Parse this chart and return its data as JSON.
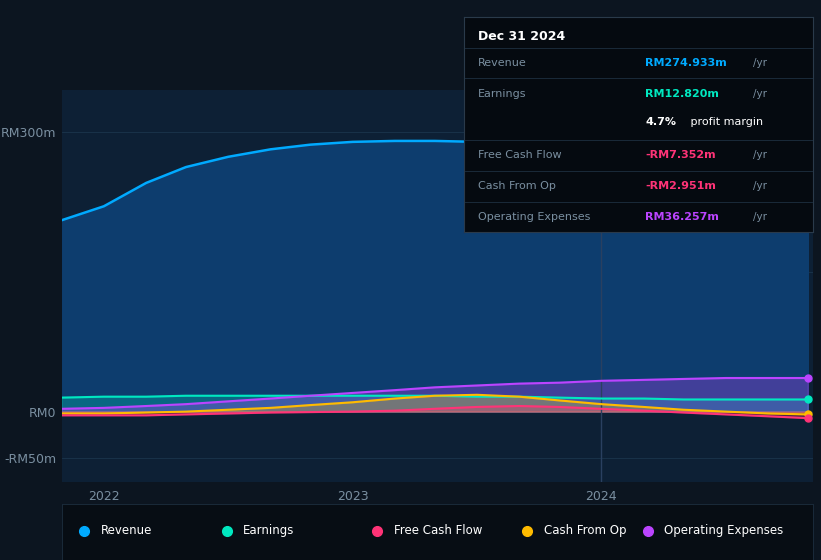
{
  "bg_color": "#0c1520",
  "plot_bg_color": "#0d2035",
  "grid_color": "#1e3a52",
  "text_color": "#7a8fa0",
  "ylabel_300": "RM300m",
  "ylabel_0": "RM0",
  "ylabel_neg50": "-RM50m",
  "revenue_color": "#00aaff",
  "earnings_color": "#00e8c0",
  "fcf_color": "#ff3377",
  "cashfromop_color": "#ffbb00",
  "opex_color": "#bb44ff",
  "revenue_fill_color": "#0d3d6e",
  "info_box_bg": "#050a10",
  "info_box_border": "#2a3a4a",
  "info_box": {
    "title": "Dec 31 2024",
    "revenue_label": "Revenue",
    "revenue_value": "RM274.933m",
    "revenue_color": "#00aaff",
    "earnings_label": "Earnings",
    "earnings_value": "RM12.820m",
    "earnings_color": "#00e8c0",
    "margin_pct": "4.7%",
    "margin_rest": " profit margin",
    "fcf_label": "Free Cash Flow",
    "fcf_value": "-RM7.352m",
    "fcf_color": "#ff3377",
    "cashop_label": "Cash From Op",
    "cashop_value": "-RM2.951m",
    "cashop_color": "#ff3377",
    "opex_label": "Operating Expenses",
    "opex_value": "RM36.257m",
    "opex_color": "#bb44ff"
  },
  "legend_items": [
    {
      "label": "Revenue",
      "color": "#00aaff"
    },
    {
      "label": "Earnings",
      "color": "#00e8c0"
    },
    {
      "label": "Free Cash Flow",
      "color": "#ff3377"
    },
    {
      "label": "Cash From Op",
      "color": "#ffbb00"
    },
    {
      "label": "Operating Expenses",
      "color": "#bb44ff"
    }
  ],
  "x_data": [
    2021.83,
    2022.0,
    2022.17,
    2022.33,
    2022.5,
    2022.67,
    2022.83,
    2023.0,
    2023.17,
    2023.33,
    2023.5,
    2023.67,
    2023.83,
    2024.0,
    2024.17,
    2024.33,
    2024.5,
    2024.67,
    2024.83
  ],
  "revenue": [
    205,
    220,
    245,
    262,
    273,
    281,
    286,
    289,
    290,
    290,
    289,
    287,
    284,
    282,
    280,
    278,
    277,
    276,
    275
  ],
  "earnings": [
    15,
    16,
    16,
    17,
    17,
    17,
    17,
    17,
    17,
    17,
    16,
    16,
    15,
    14,
    14,
    13,
    13,
    13,
    13
  ],
  "fcf": [
    -4,
    -4,
    -4,
    -3,
    -2,
    -1,
    -0.5,
    0,
    1,
    3,
    5,
    6,
    5,
    3,
    1,
    -1,
    -3,
    -5,
    -7
  ],
  "cashfromop": [
    -2,
    -2,
    -1,
    0,
    2,
    4,
    7,
    10,
    14,
    17,
    18,
    16,
    12,
    8,
    5,
    2,
    0,
    -2,
    -3
  ],
  "opex": [
    3,
    4,
    6,
    8,
    11,
    14,
    17,
    20,
    23,
    26,
    28,
    30,
    31,
    33,
    34,
    35,
    36,
    36,
    36
  ],
  "vline_x": 2024.0
}
